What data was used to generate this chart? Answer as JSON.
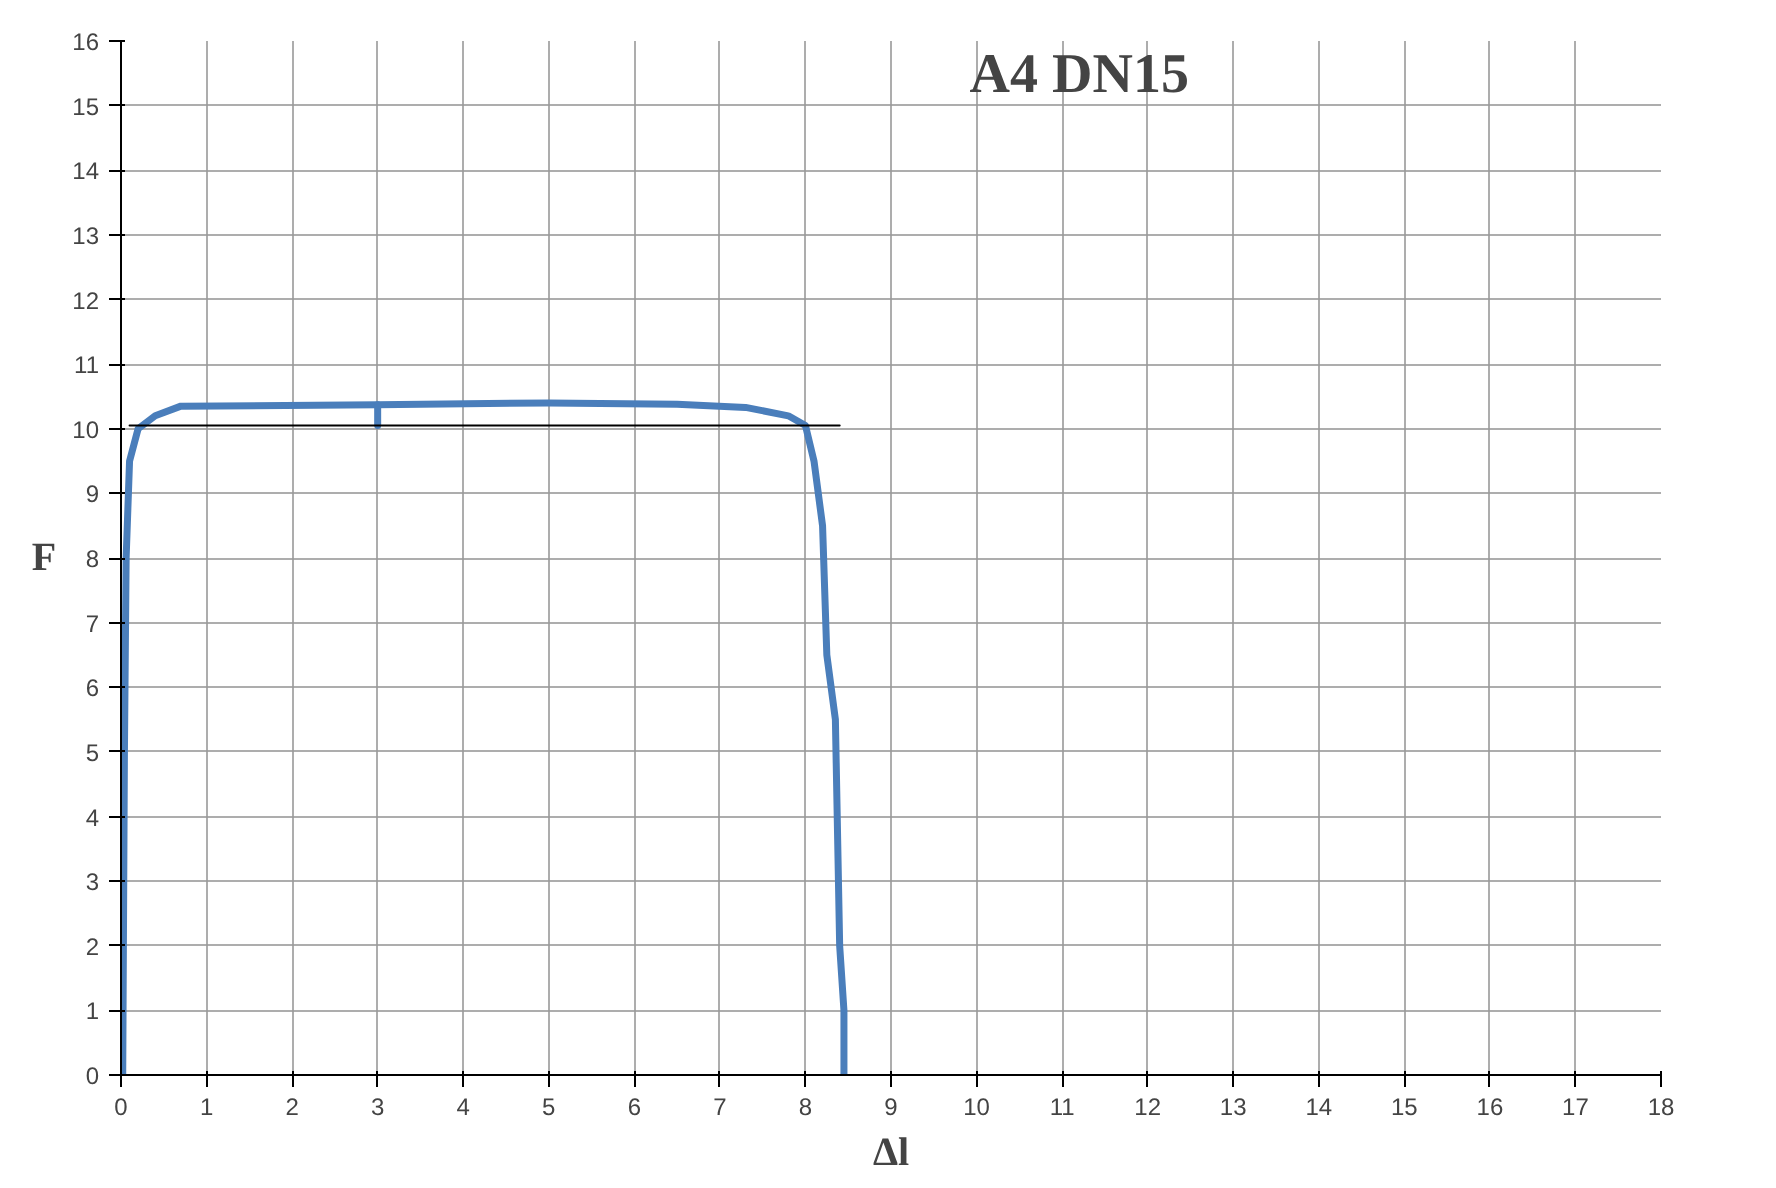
{
  "chart_data": {
    "type": "line",
    "title": "A4 DN15",
    "xlabel": "Δl",
    "ylabel": "F",
    "xlim": [
      0,
      18
    ],
    "ylim": [
      0,
      16
    ],
    "xticks": [
      0,
      1,
      2,
      3,
      4,
      5,
      6,
      7,
      8,
      9,
      10,
      11,
      12,
      13,
      14,
      15,
      16,
      17,
      18
    ],
    "yticks": [
      0,
      1,
      2,
      3,
      4,
      5,
      6,
      7,
      8,
      9,
      10,
      11,
      12,
      13,
      14,
      15,
      16
    ],
    "grid": true,
    "marker": "none",
    "line_style": "solid",
    "series": [
      {
        "color": "#4a7ebb",
        "x": [
          0.02,
          0.04,
          0.06,
          0.1,
          0.2,
          0.4,
          0.7,
          3,
          5,
          6.5,
          7.3,
          7.8,
          8.0,
          8.1,
          8.2,
          8.25,
          8.35,
          8.4,
          8.45,
          8.45
        ],
        "values": [
          0,
          5,
          8,
          9.5,
          10,
          10.2,
          10.35,
          10.37,
          10.4,
          10.38,
          10.33,
          10.2,
          10.05,
          9.5,
          8.5,
          6.5,
          5.5,
          2,
          1,
          0
        ]
      },
      {
        "color": "#4a7ebb",
        "x": [
          3,
          3
        ],
        "values": [
          10.37,
          10.05
        ]
      },
      {
        "color": "#000000",
        "x": [
          0.1,
          8.4
        ],
        "values": [
          10.05,
          10.05
        ]
      }
    ]
  }
}
